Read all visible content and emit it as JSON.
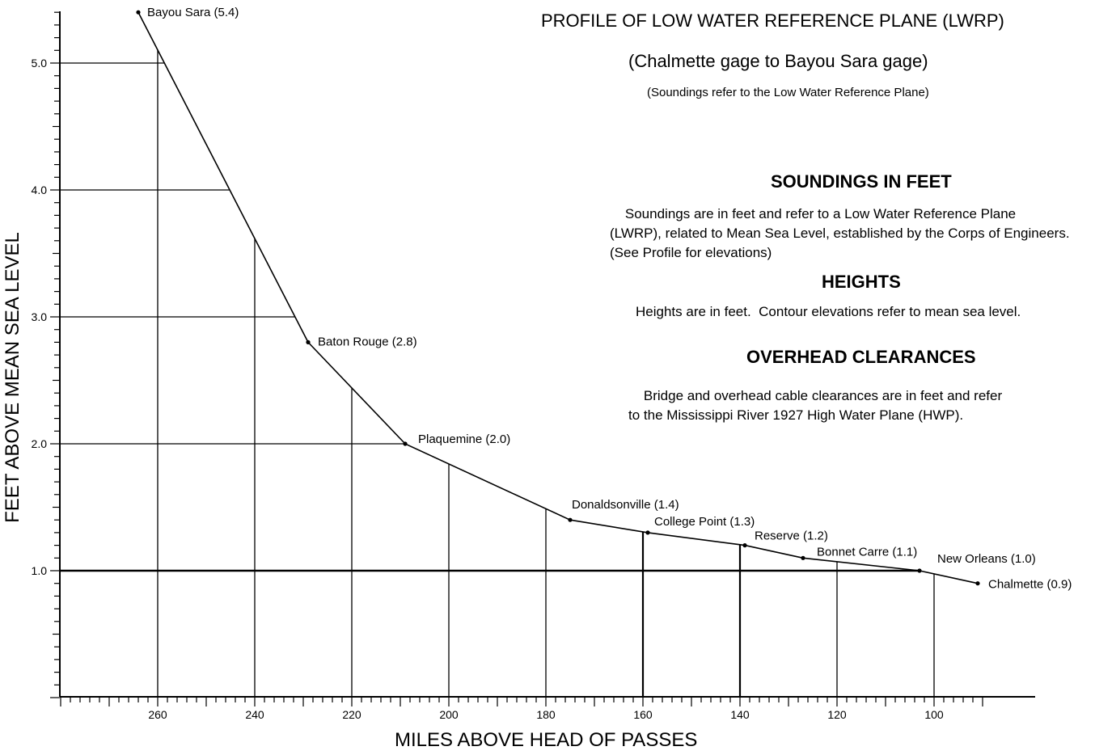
{
  "chart_data": {
    "type": "line",
    "title": "PROFILE OF LOW WATER REFERENCE PLANE (LWRP)",
    "subtitle": "(Chalmette gage to Bayou Sara gage)",
    "note": "(Soundings refer to the Low Water Reference Plane)",
    "xlabel": "MILES ABOVE HEAD OF PASSES",
    "ylabel": "FEET ABOVE MEAN SEA LEVEL",
    "x_reversed": true,
    "xlim": [
      290,
      90
    ],
    "ylim": [
      0,
      5.5
    ],
    "xticks": [
      260,
      240,
      220,
      200,
      180,
      160,
      140,
      120,
      100
    ],
    "xtick_labels": [
      "260",
      "240",
      "220",
      "200",
      "180",
      "160",
      "140",
      "120",
      "100"
    ],
    "yticks": [
      1.0,
      2.0,
      3.0,
      4.0,
      5.0
    ],
    "ytick_labels": [
      "1.0",
      "2.0",
      "3.0",
      "4.0",
      "5.0"
    ],
    "grid": true,
    "points": [
      {
        "x": 264,
        "y": 5.4,
        "label": "Bayou Sara (5.4)"
      },
      {
        "x": 229,
        "y": 2.8,
        "label": "Baton Rouge (2.8)"
      },
      {
        "x": 209,
        "y": 2.0,
        "label": "Plaquemine (2.0)"
      },
      {
        "x": 175,
        "y": 1.4,
        "label": "Donaldsonville (1.4)"
      },
      {
        "x": 159,
        "y": 1.3,
        "label": "College Point (1.3)"
      },
      {
        "x": 139,
        "y": 1.2,
        "label": "Reserve (1.2)"
      },
      {
        "x": 127,
        "y": 1.1,
        "label": "Bonnet Carre (1.1)"
      },
      {
        "x": 103,
        "y": 1.0,
        "label": "New Orleans (1.0)"
      },
      {
        "x": 91,
        "y": 0.9,
        "label": "Chalmette (0.9)"
      }
    ]
  },
  "legend": {
    "soundings_heading": "SOUNDINGS IN FEET",
    "soundings_text": "    Soundings are in feet and refer to a Low Water Reference Plane\n(LWRP), related to Mean Sea Level, established by the Corps of Engineers.\n(See Profile for elevations)",
    "heights_heading": "HEIGHTS",
    "heights_text": "Heights are in feet.  Contour elevations refer to mean sea level.",
    "clearances_heading": "OVERHEAD CLEARANCES",
    "clearances_text": "    Bridge and overhead cable clearances are in feet and refer\nto the Mississippi River 1927 High Water Plane (HWP)."
  }
}
